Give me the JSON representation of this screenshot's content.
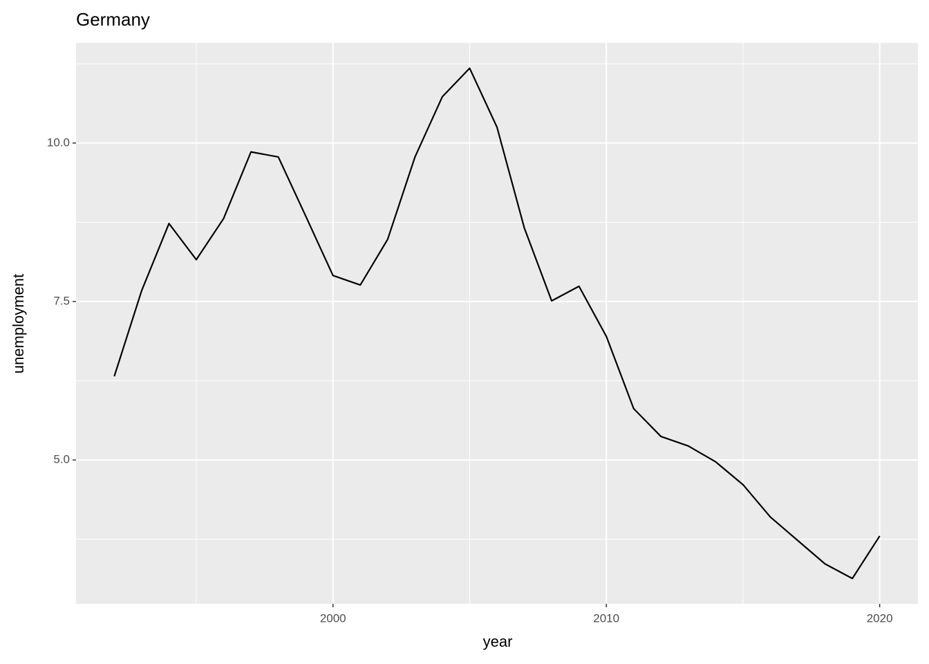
{
  "chart_data": {
    "type": "line",
    "title": "Germany",
    "x_label": "year",
    "y_label": "unemployment",
    "x": [
      1992,
      1993,
      1994,
      1995,
      1996,
      1997,
      1998,
      1999,
      2000,
      2001,
      2002,
      2003,
      2004,
      2005,
      2006,
      2007,
      2008,
      2009,
      2010,
      2011,
      2012,
      2013,
      2014,
      2015,
      2016,
      2017,
      2018,
      2019,
      2020
    ],
    "series": [
      {
        "name": "unemployment",
        "color": "#000000",
        "values": [
          6.32,
          7.67,
          8.73,
          8.16,
          8.81,
          9.86,
          9.78,
          8.85,
          7.91,
          7.76,
          8.48,
          9.78,
          10.73,
          11.18,
          10.25,
          8.66,
          7.51,
          7.74,
          6.95,
          5.81,
          5.37,
          5.22,
          4.97,
          4.61,
          4.1,
          3.73,
          3.36,
          3.13,
          3.8
        ]
      }
    ],
    "xlim": [
      1990.6,
      2021.4
    ],
    "ylim": [
      2.73,
      11.58
    ],
    "xticks": [
      2000,
      2010,
      2020
    ],
    "yticks": [
      {
        "value": 5,
        "label": "5.0"
      },
      7.5,
      {
        "value": 10,
        "label": "10.0"
      }
    ],
    "grid": true,
    "background": "#ebebeb"
  }
}
